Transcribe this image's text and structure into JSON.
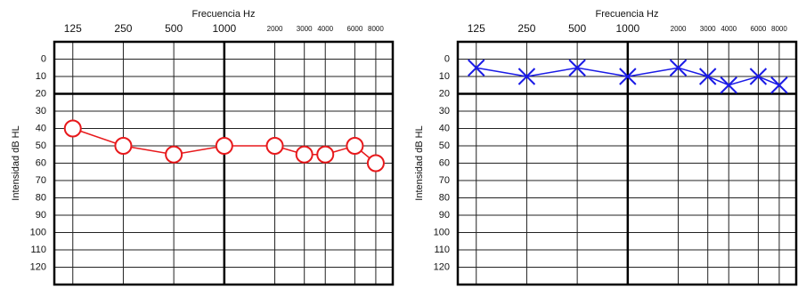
{
  "chart_data": [
    {
      "type": "line",
      "title": "Frecuencia Hz",
      "y_label": "Intensidad  dB HL",
      "x": [
        125,
        250,
        500,
        1000,
        2000,
        3000,
        4000,
        6000,
        8000
      ],
      "xlim": [
        97,
        10100
      ],
      "xticks": [
        125,
        250,
        500,
        1000,
        2000,
        3000,
        4000,
        6000,
        8000
      ],
      "x_log": true,
      "ylim": [
        -10,
        130
      ],
      "yticks": [
        0,
        10,
        20,
        30,
        40,
        50,
        60,
        70,
        80,
        90,
        100,
        110,
        120
      ],
      "y_inverted": true,
      "grid": true,
      "emphasis": {
        "x": 1000,
        "y": 20
      },
      "series": [
        {
          "color": "#e8191c",
          "marker": "circle",
          "values": [
            40,
            50,
            55,
            50,
            50,
            55,
            55,
            50,
            60
          ]
        }
      ]
    },
    {
      "type": "line",
      "title": "Frecuencia Hz",
      "y_label": "Intensidad  dB HL",
      "x": [
        125,
        250,
        500,
        1000,
        2000,
        3000,
        4000,
        6000,
        8000
      ],
      "xlim": [
        97,
        10100
      ],
      "xticks": [
        125,
        250,
        500,
        1000,
        2000,
        3000,
        4000,
        6000,
        8000
      ],
      "x_log": true,
      "ylim": [
        -10,
        130
      ],
      "yticks": [
        0,
        10,
        20,
        30,
        40,
        50,
        60,
        70,
        80,
        90,
        100,
        110,
        120
      ],
      "y_inverted": true,
      "grid": true,
      "emphasis": {
        "x": 1000,
        "y": 20
      },
      "series": [
        {
          "color": "#1a1ae6",
          "marker": "x",
          "values": [
            5,
            10,
            5,
            10,
            5,
            10,
            15,
            10,
            15
          ]
        }
      ]
    }
  ]
}
